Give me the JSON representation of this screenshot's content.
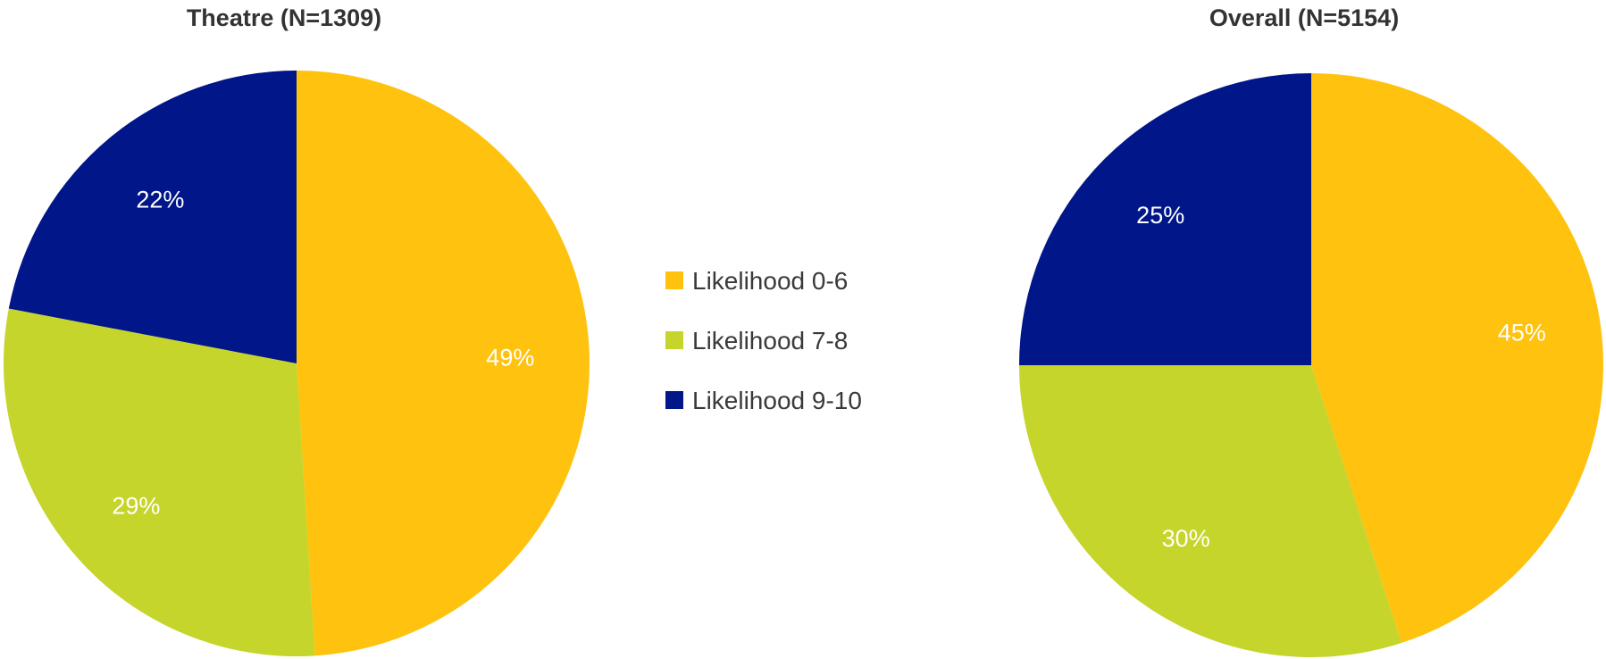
{
  "colors": {
    "likelihood_0_6": "#FFC20E",
    "likelihood_7_8": "#C5D52B",
    "likelihood_9_10": "#001689"
  },
  "legend": {
    "position": "center",
    "items": [
      {
        "label": "Likelihood 0-6",
        "color_key": "likelihood_0_6"
      },
      {
        "label": "Likelihood 7-8",
        "color_key": "likelihood_7_8"
      },
      {
        "label": "Likelihood 9-10",
        "color_key": "likelihood_9_10"
      }
    ]
  },
  "chart_data": [
    {
      "type": "pie",
      "title": "Theatre (N=1309)",
      "categories": [
        "Likelihood 0-6",
        "Likelihood 7-8",
        "Likelihood 9-10"
      ],
      "values": [
        49,
        29,
        22
      ],
      "labels": [
        "49%",
        "29%",
        "22%"
      ],
      "start": "12 o'clock",
      "direction": "clockwise"
    },
    {
      "type": "pie",
      "title": "Overall (N=5154)",
      "categories": [
        "Likelihood 0-6",
        "Likelihood 7-8",
        "Likelihood 9-10"
      ],
      "values": [
        45,
        30,
        25
      ],
      "labels": [
        "45%",
        "30%",
        "25%"
      ],
      "start": "12 o'clock",
      "direction": "clockwise"
    }
  ]
}
